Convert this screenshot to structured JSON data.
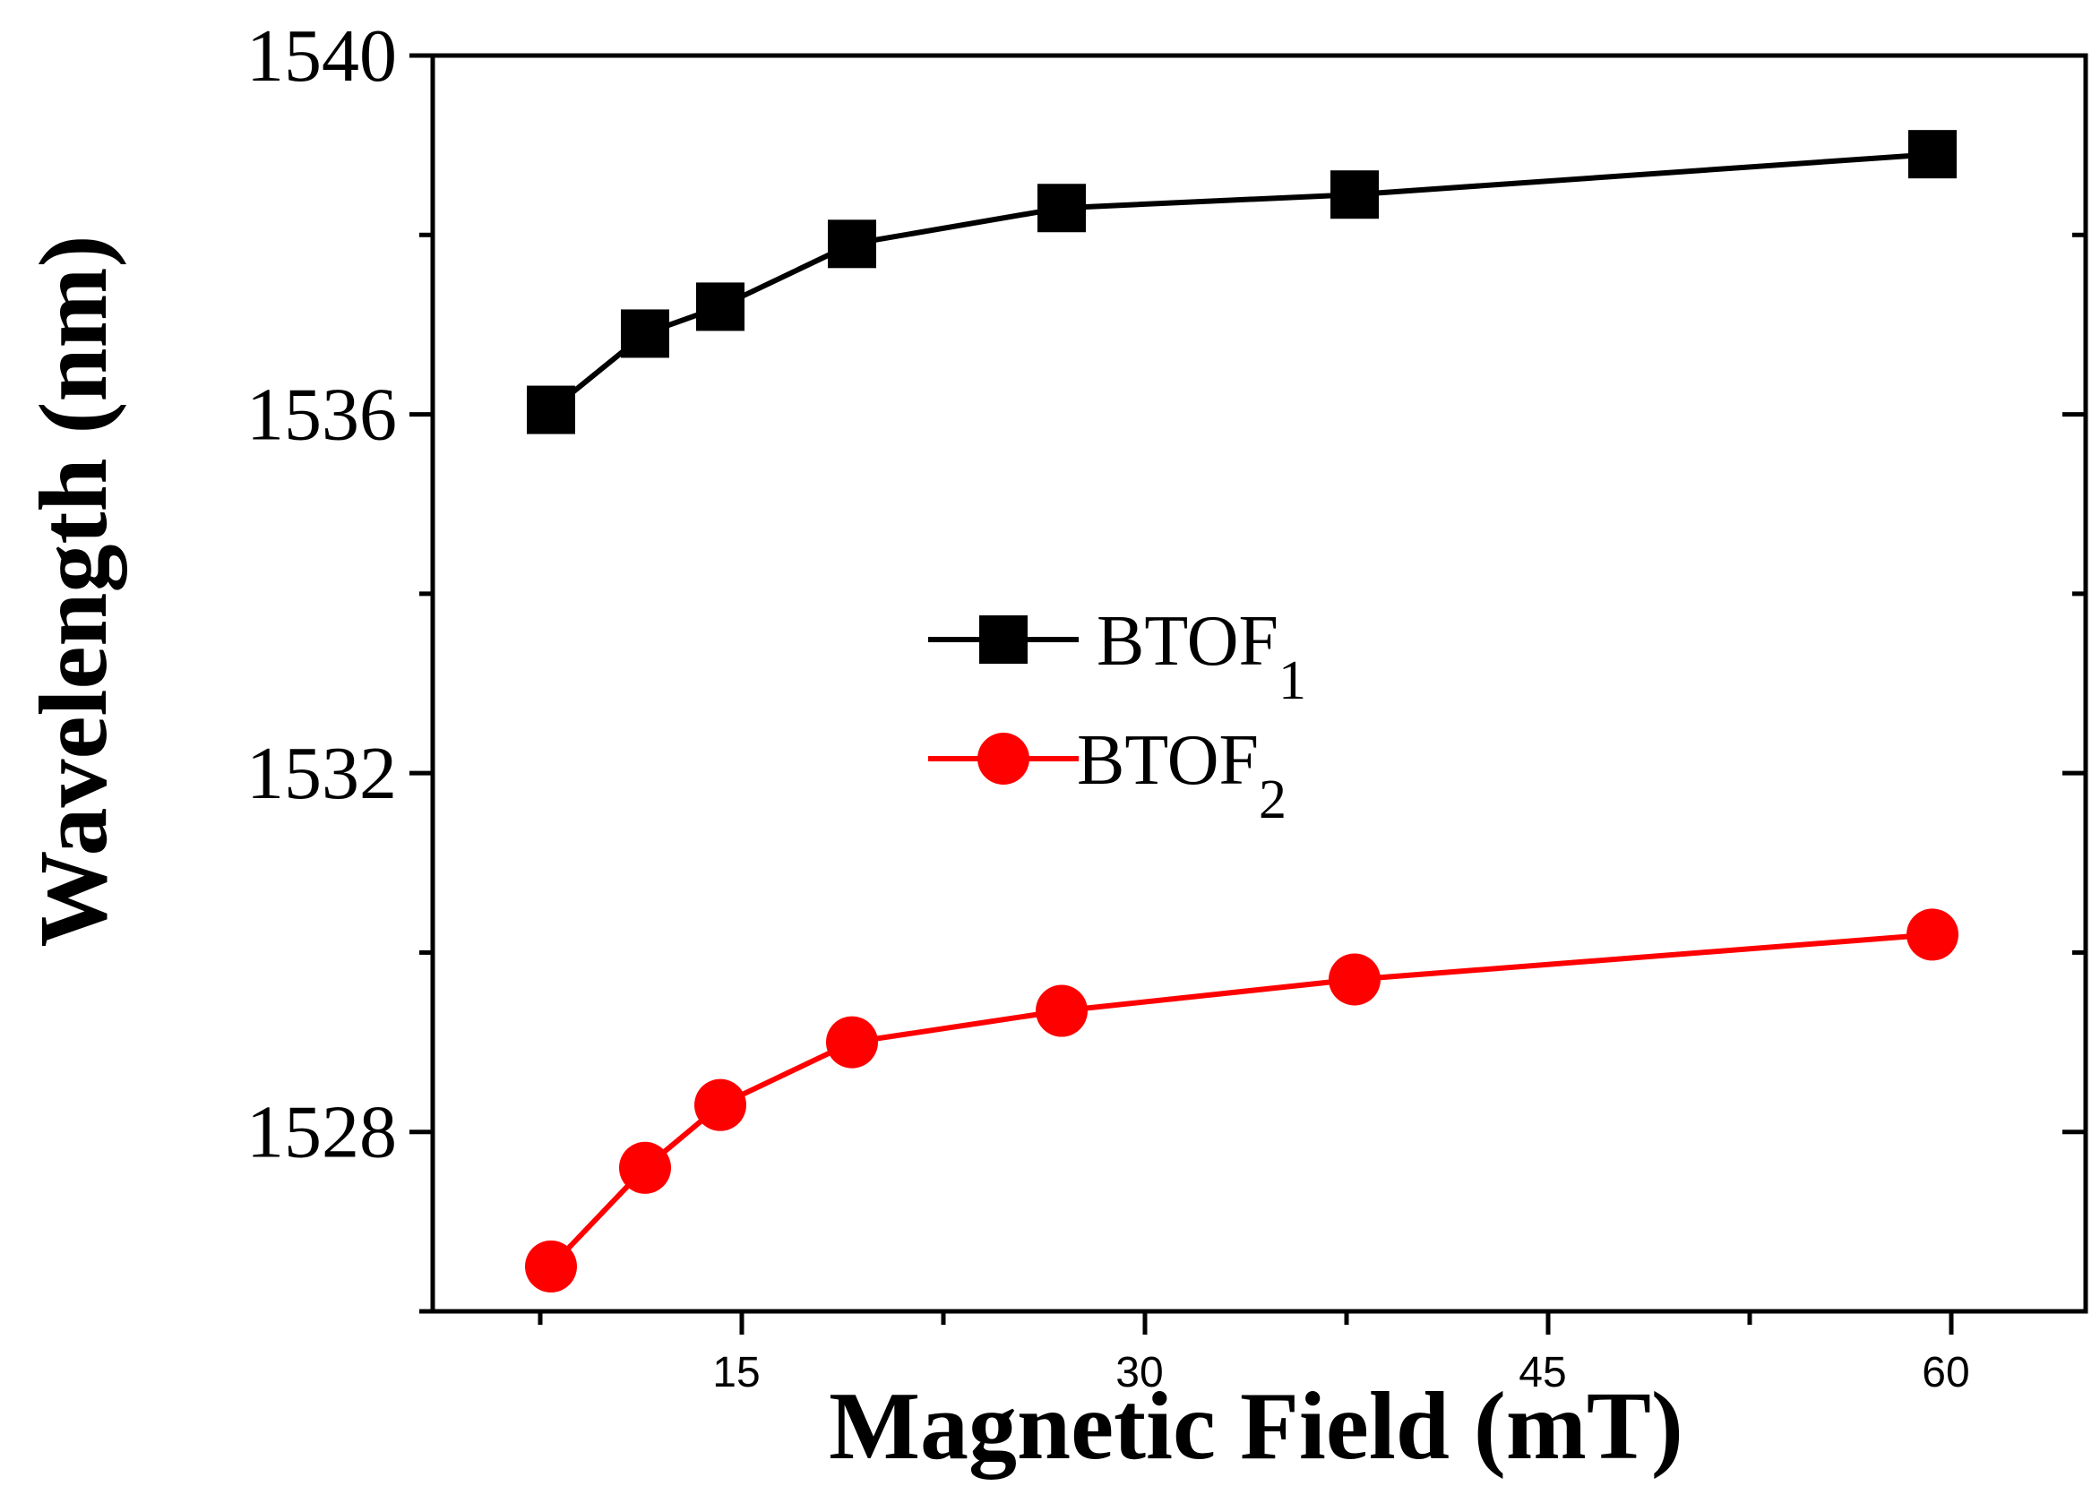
{
  "chart_data": {
    "type": "line",
    "title": "",
    "xlabel": "Magnetic Field (mT)",
    "ylabel": "Wavelength (nm)",
    "xlim": [
      3.5,
      65
    ],
    "ylim": [
      1526.0,
      1540.0
    ],
    "xticks": [
      15,
      30,
      45,
      60
    ],
    "xticks_minor": [
      7.5,
      22.5,
      37.5,
      52.5
    ],
    "yticks": [
      1528,
      1532,
      1536,
      1540
    ],
    "yticks_minor": [
      1526,
      1530,
      1534,
      1538
    ],
    "grid": false,
    "legend_position": "center",
    "series": [
      {
        "name": "BTOF",
        "subscript": "1",
        "color": "#000000",
        "marker": "square",
        "x": [
          7.9,
          11.4,
          14.2,
          19.1,
          26.9,
          37.8,
          59.3
        ],
        "y": [
          1536.05,
          1536.9,
          1537.2,
          1537.9,
          1538.3,
          1538.45,
          1538.9
        ]
      },
      {
        "name": "BTOF",
        "subscript": "2",
        "color": "#ff0000",
        "marker": "circle",
        "x": [
          7.9,
          11.4,
          14.2,
          19.1,
          26.9,
          37.8,
          59.3
        ],
        "y": [
          1526.5,
          1527.6,
          1528.3,
          1529.0,
          1529.35,
          1529.7,
          1530.2
        ]
      }
    ]
  }
}
